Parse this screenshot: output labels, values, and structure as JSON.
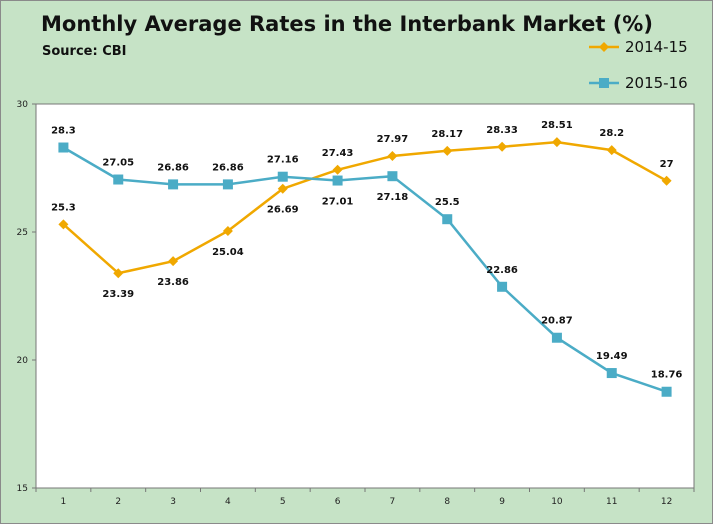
{
  "chart_data": {
    "type": "line",
    "title": "Monthly Average Rates in the Interbank Market (%)",
    "subtitle": "Source: CBI",
    "x": [
      1,
      2,
      3,
      4,
      5,
      6,
      7,
      8,
      9,
      10,
      11,
      12
    ],
    "ylim": [
      15,
      30
    ],
    "yticks": [
      15,
      20,
      25,
      30
    ],
    "grid": false,
    "legend": "top-right",
    "series": [
      {
        "name": "2014-15",
        "color": "#f0a800",
        "marker": "diamond",
        "values": [
          25.3,
          23.39,
          23.86,
          25.04,
          26.69,
          27.43,
          27.97,
          28.17,
          28.33,
          28.51,
          28.2,
          27
        ]
      },
      {
        "name": "2015-16",
        "color": "#4bacc6",
        "marker": "square",
        "values": [
          28.3,
          27.05,
          26.86,
          26.86,
          27.16,
          27.01,
          27.18,
          25.5,
          22.86,
          20.87,
          19.49,
          18.76
        ]
      }
    ],
    "colors": {
      "background": "#c6e3c6",
      "plot_area": "#ffffff"
    }
  }
}
